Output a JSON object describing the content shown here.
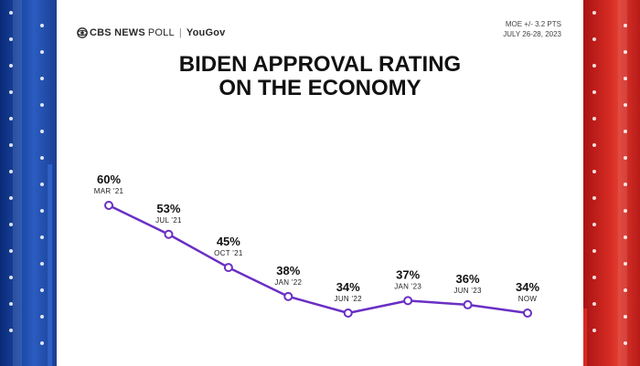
{
  "header": {
    "brand_cbs": "CBS NEWS",
    "brand_poll": "POLL",
    "brand_separator": "|",
    "brand_yougov": "YouGov",
    "moe_line1": "MOE +/- 3.2 PTS",
    "moe_line2": "JULY 26-28, 2023"
  },
  "colors": {
    "line": "#6a2fc4",
    "left_panel": "#1f4fae",
    "right_panel": "#d42a22"
  },
  "chart_data": {
    "type": "line",
    "title": "BIDEN APPROVAL RATING ON THE ECONOMY",
    "title_lines": [
      "BIDEN APPROVAL RATING",
      "ON THE ECONOMY"
    ],
    "categories": [
      "MAR '21",
      "JUL '21",
      "OCT '21",
      "JAN '22",
      "JUN '22",
      "JAN '23",
      "JUN '23",
      "NOW"
    ],
    "values": [
      60,
      53,
      45,
      38,
      34,
      37,
      36,
      34
    ],
    "value_labels": [
      "60%",
      "53%",
      "45%",
      "38%",
      "34%",
      "37%",
      "36%",
      "34%"
    ],
    "unit": "%",
    "ylim": [
      30,
      62
    ],
    "grid": false,
    "legend": "none"
  }
}
